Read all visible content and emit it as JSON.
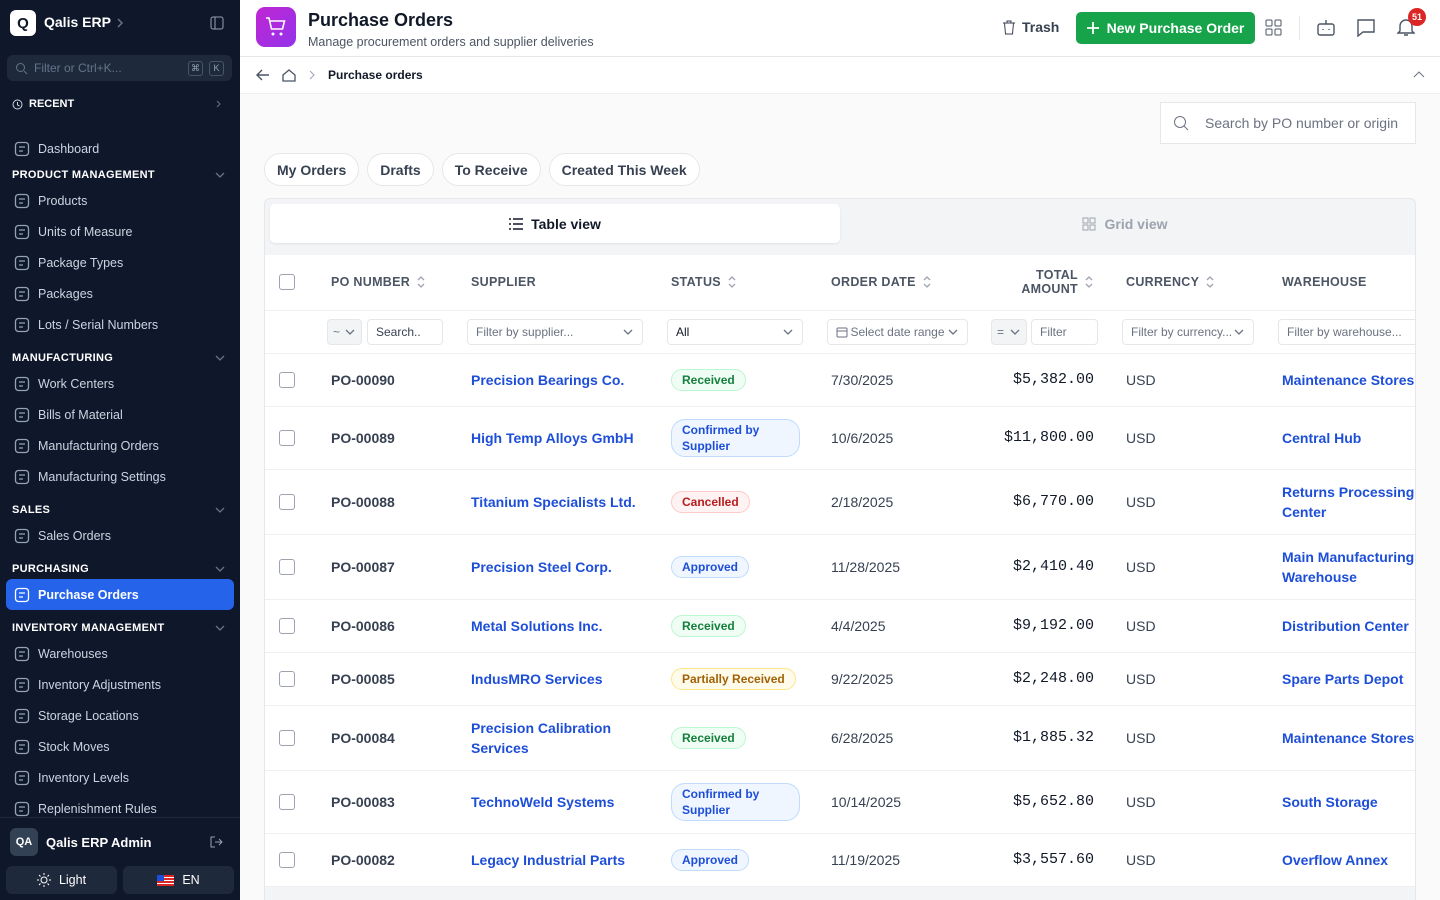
{
  "sidebar": {
    "logo": "Q",
    "brand": "Qalis ERP",
    "filter_placeholder": "Filter or Ctrl+K...",
    "shortcut": [
      "⌘",
      "K"
    ],
    "recent": "RECENT",
    "top_items": [
      "Dashboard"
    ],
    "sections": [
      {
        "title": "PRODUCT MANAGEMENT",
        "items": [
          "Products",
          "Units of Measure",
          "Package Types",
          "Packages",
          "Lots / Serial Numbers"
        ]
      },
      {
        "title": "MANUFACTURING",
        "items": [
          "Work Centers",
          "Bills of Material",
          "Manufacturing Orders",
          "Manufacturing Settings"
        ]
      },
      {
        "title": "SALES",
        "items": [
          "Sales Orders"
        ]
      },
      {
        "title": "PURCHASING",
        "items": [
          "Purchase Orders"
        ],
        "active": 0
      },
      {
        "title": "INVENTORY MANAGEMENT",
        "items": [
          "Warehouses",
          "Inventory Adjustments",
          "Storage Locations",
          "Stock Moves",
          "Inventory Levels",
          "Replenishment Rules"
        ]
      }
    ],
    "user": {
      "initials": "QA",
      "name": "Qalis ERP Admin"
    },
    "theme": "Light",
    "language": "EN"
  },
  "header": {
    "title": "Purchase Orders",
    "subtitle": "Manage procurement orders and supplier deliveries",
    "trash": "Trash",
    "new_button": "New Purchase Order",
    "notifications": "51"
  },
  "breadcrumb": {
    "current": "Purchase orders"
  },
  "search_placeholder": "Search by PO number or origin",
  "quick_filters": [
    "My Orders",
    "Drafts",
    "To Receive",
    "Created This Week"
  ],
  "views": {
    "table": "Table view",
    "grid": "Grid view"
  },
  "table": {
    "columns": [
      "PO NUMBER",
      "SUPPLIER",
      "STATUS",
      "ORDER DATE",
      "TOTAL AMOUNT",
      "CURRENCY",
      "WAREHOUSE"
    ],
    "filters": {
      "po_operator": "~",
      "po_search": "Search..",
      "supplier": "Filter by supplier...",
      "status": "All",
      "date": "Select date range",
      "amount_operator": "=",
      "amount": "Filter",
      "currency": "Filter by currency...",
      "warehouse": "Filter by warehouse..."
    },
    "rows": [
      {
        "po": "PO-00090",
        "supplier": "Precision Bearings Co.",
        "status": "Received",
        "tone": "green",
        "date": "7/30/2025",
        "amount": "$5,382.00",
        "currency": "USD",
        "warehouse": "Maintenance Stores"
      },
      {
        "po": "PO-00089",
        "supplier": "High Temp Alloys GmbH",
        "status": "Confirmed by Supplier",
        "tone": "blue",
        "date": "10/6/2025",
        "amount": "$11,800.00",
        "currency": "USD",
        "warehouse": "Central Hub"
      },
      {
        "po": "PO-00088",
        "supplier": "Titanium Specialists Ltd.",
        "status": "Cancelled",
        "tone": "red",
        "date": "2/18/2025",
        "amount": "$6,770.00",
        "currency": "USD",
        "warehouse": "Returns Processing Center"
      },
      {
        "po": "PO-00087",
        "supplier": "Precision Steel Corp.",
        "status": "Approved",
        "tone": "blue",
        "date": "11/28/2025",
        "amount": "$2,410.40",
        "currency": "USD",
        "warehouse": "Main Manufacturing Warehouse"
      },
      {
        "po": "PO-00086",
        "supplier": "Metal Solutions Inc.",
        "status": "Received",
        "tone": "green",
        "date": "4/4/2025",
        "amount": "$9,192.00",
        "currency": "USD",
        "warehouse": "Distribution Center"
      },
      {
        "po": "PO-00085",
        "supplier": "IndusMRO Services",
        "status": "Partially Received",
        "tone": "amber",
        "date": "9/22/2025",
        "amount": "$2,248.00",
        "currency": "USD",
        "warehouse": "Spare Parts Depot"
      },
      {
        "po": "PO-00084",
        "supplier": "Precision Calibration Services",
        "status": "Received",
        "tone": "green",
        "date": "6/28/2025",
        "amount": "$1,885.32",
        "currency": "USD",
        "warehouse": "Maintenance Stores"
      },
      {
        "po": "PO-00083",
        "supplier": "TechnoWeld Systems",
        "status": "Confirmed by Supplier",
        "tone": "blue",
        "date": "10/14/2025",
        "amount": "$5,652.80",
        "currency": "USD",
        "warehouse": "South Storage"
      },
      {
        "po": "PO-00082",
        "supplier": "Legacy Industrial Parts",
        "status": "Approved",
        "tone": "blue",
        "date": "11/19/2025",
        "amount": "$3,557.60",
        "currency": "USD",
        "warehouse": "Overflow Annex"
      }
    ]
  }
}
